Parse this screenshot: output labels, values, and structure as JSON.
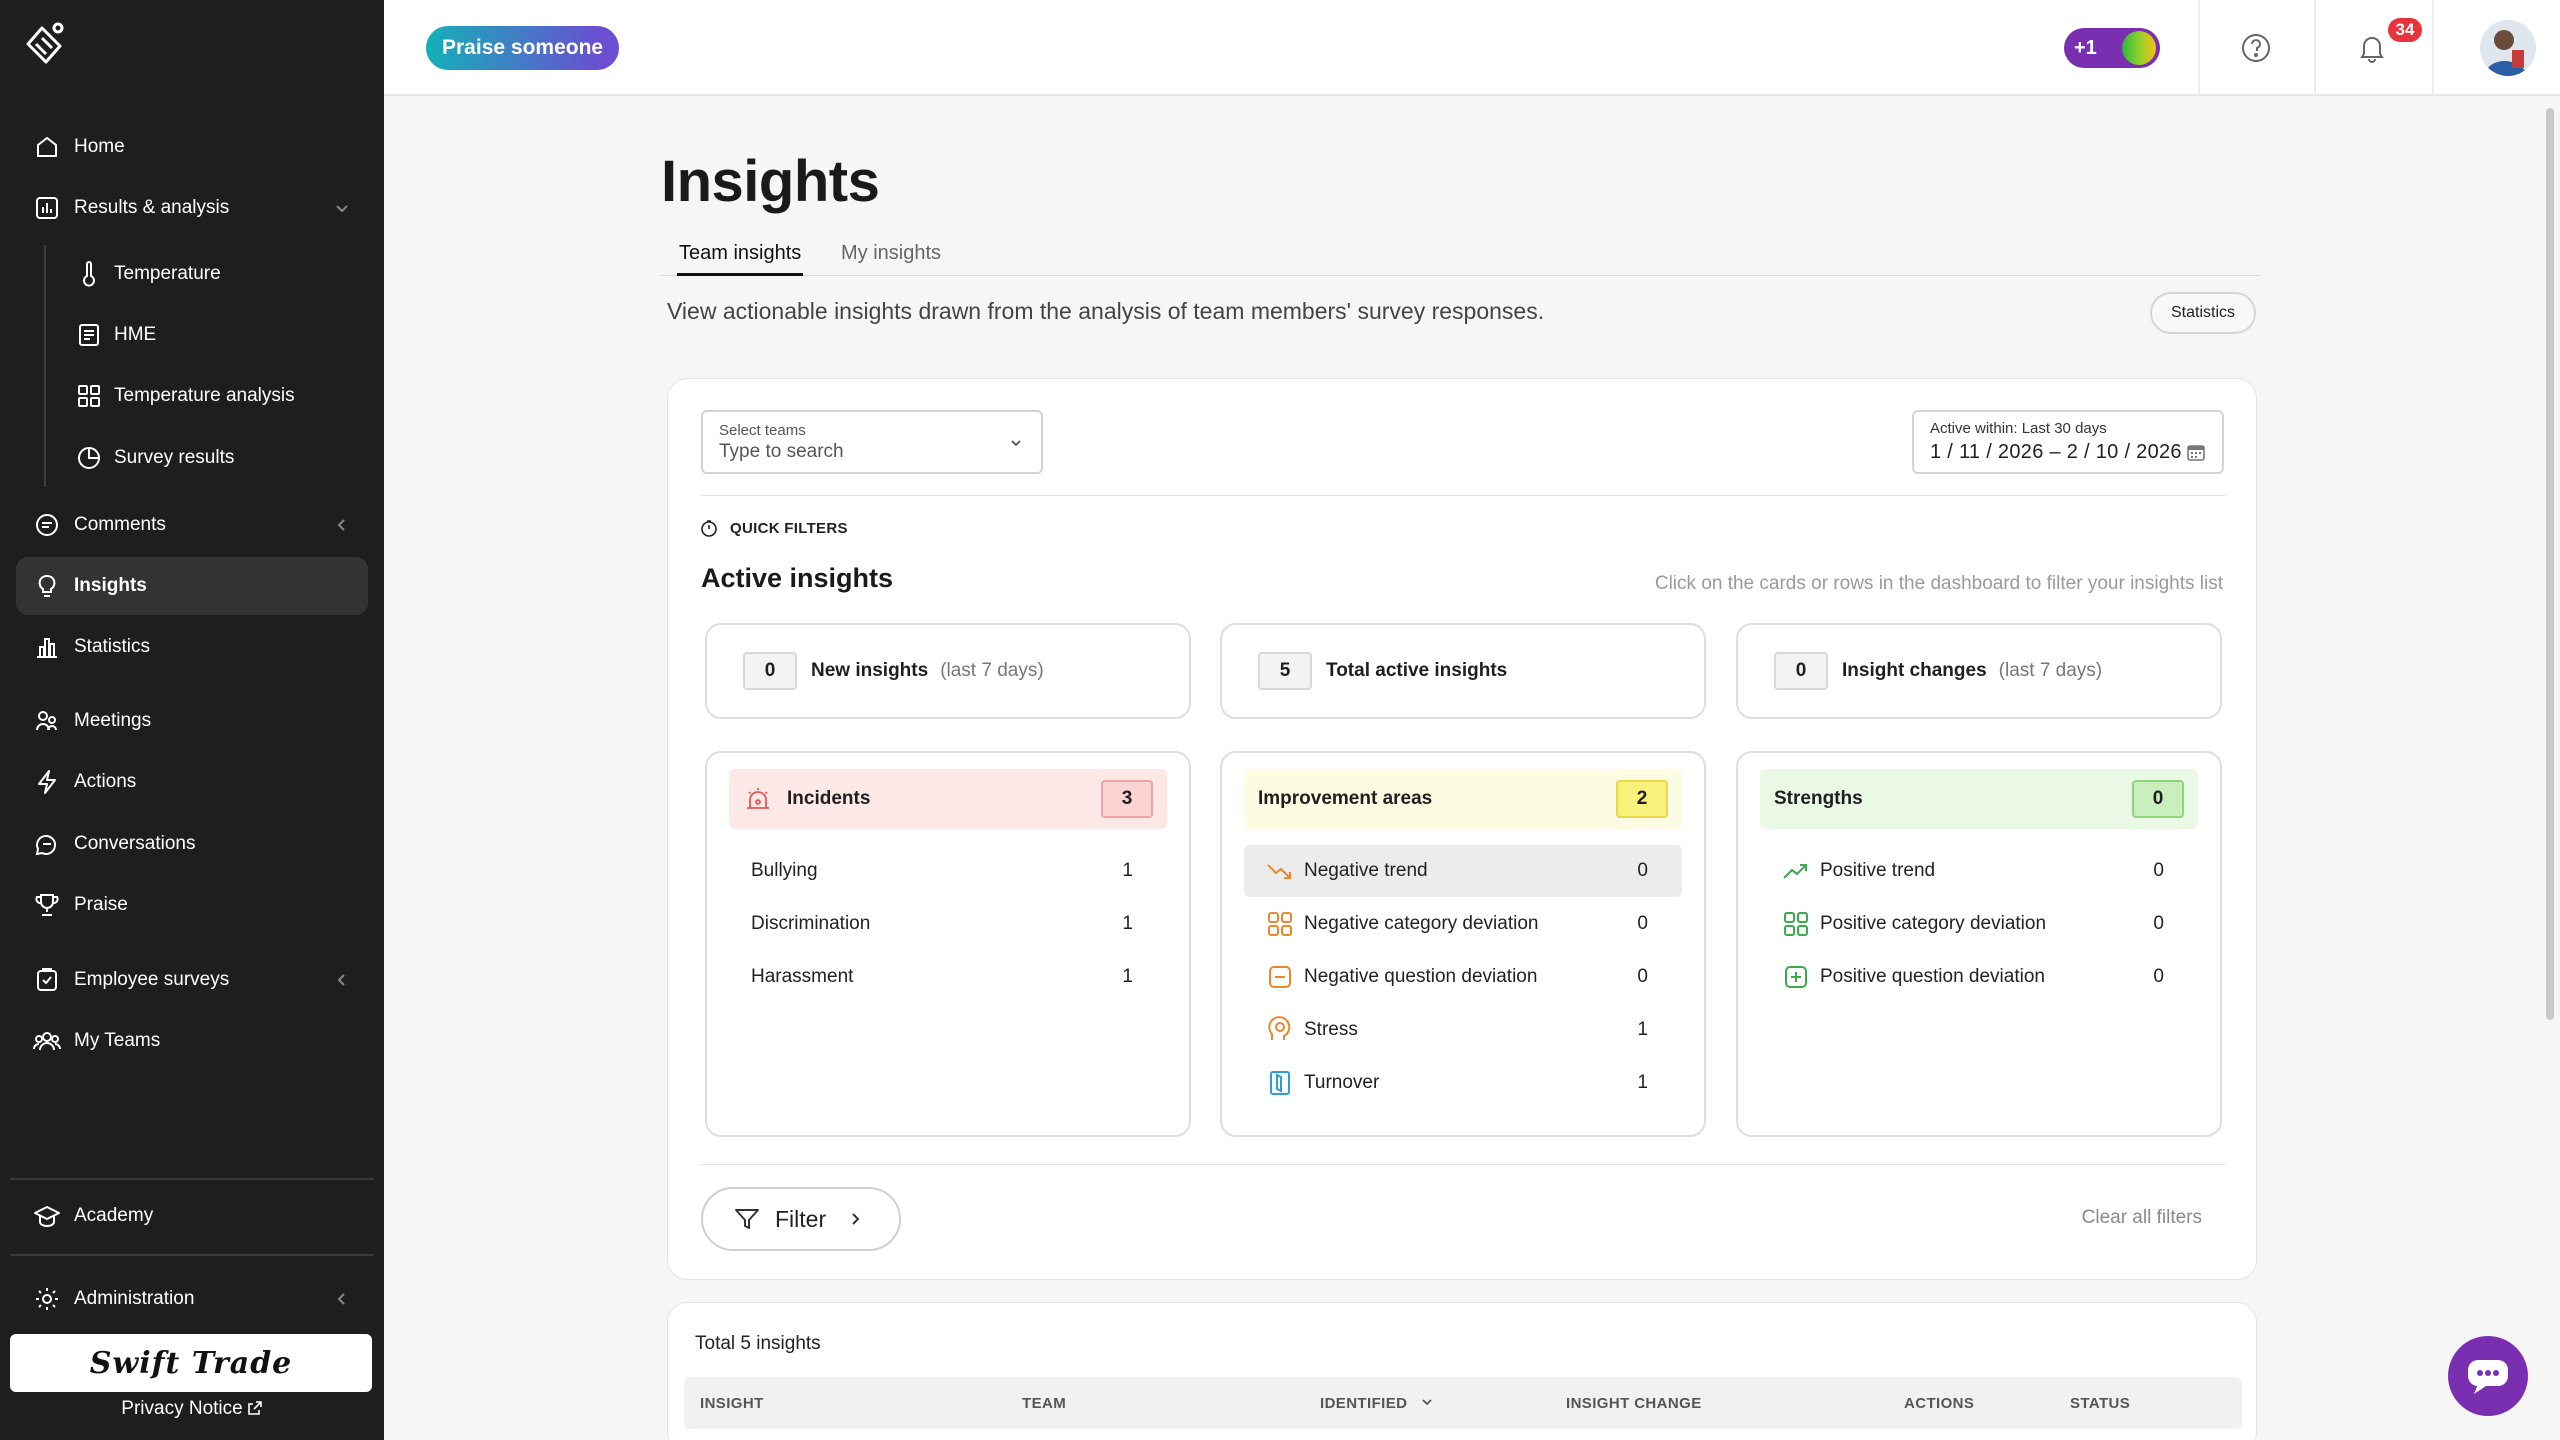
{
  "sidebar": {
    "items": [
      {
        "label": "Home",
        "icon": "home-icon"
      },
      {
        "label": "Results & analysis",
        "icon": "chart-icon"
      },
      {
        "label": "Temperature",
        "icon": "thermometer-icon"
      },
      {
        "label": "HME",
        "icon": "document-icon"
      },
      {
        "label": "Temperature analysis",
        "icon": "grid-icon"
      },
      {
        "label": "Survey results",
        "icon": "pie-icon"
      },
      {
        "label": "Comments",
        "icon": "comment-icon"
      },
      {
        "label": "Insights",
        "icon": "bulb-icon"
      },
      {
        "label": "Statistics",
        "icon": "bar-chart-icon"
      },
      {
        "label": "Meetings",
        "icon": "meetings-icon"
      },
      {
        "label": "Actions",
        "icon": "bolt-icon"
      },
      {
        "label": "Conversations",
        "icon": "conversations-icon"
      },
      {
        "label": "Praise",
        "icon": "trophy-icon"
      },
      {
        "label": "Employee surveys",
        "icon": "survey-icon"
      },
      {
        "label": "My Teams",
        "icon": "team-icon"
      },
      {
        "label": "Academy",
        "icon": "graduation-icon"
      },
      {
        "label": "Administration",
        "icon": "gear-icon"
      }
    ],
    "brand": "Swift Trade",
    "privacy": "Privacy Notice"
  },
  "topbar": {
    "praise_button": "Praise someone",
    "plus_label": "+1",
    "notification_count": "34"
  },
  "main": {
    "title": "Insights",
    "tabs": [
      {
        "label": "Team insights"
      },
      {
        "label": "My insights"
      }
    ],
    "description": "View actionable insights drawn from the analysis of team members' survey responses.",
    "statistics_button": "Statistics",
    "select_teams": {
      "label": "Select teams",
      "placeholder": "Type to search"
    },
    "date_range": {
      "label": "Active within: Last 30 days",
      "value": "1 / 11 / 2026  –  2 / 10 / 2026"
    },
    "quick_filters": "QUICK FILTERS",
    "active_insights_title": "Active insights",
    "hint": "Click on the cards or rows in the dashboard to filter your insights list",
    "kpis": [
      {
        "value": "0",
        "label": "New insights",
        "sub": "(last 7 days)"
      },
      {
        "value": "5",
        "label": "Total active insights",
        "sub": ""
      },
      {
        "value": "0",
        "label": "Insight changes",
        "sub": "(last 7 days)"
      }
    ],
    "categories": [
      {
        "title": "Incidents",
        "count": "3",
        "head_color": "#fde8e8",
        "count_color": "#fbd3d3",
        "count_border": "#f0a3a3",
        "rows": [
          {
            "label": "Bullying",
            "value": "1"
          },
          {
            "label": "Discrimination",
            "value": "1"
          },
          {
            "label": "Harassment",
            "value": "1"
          }
        ]
      },
      {
        "title": "Improvement areas",
        "count": "2",
        "head_color": "#fdfbe1",
        "count_color": "#f8f17a",
        "count_border": "#e8d84a",
        "rows": [
          {
            "label": "Negative trend",
            "value": "0",
            "icon": "trend-down-icon"
          },
          {
            "label": "Negative category deviation",
            "value": "0",
            "icon": "category-icon"
          },
          {
            "label": "Negative question deviation",
            "value": "0",
            "icon": "minus-square-icon"
          },
          {
            "label": "Stress",
            "value": "1",
            "icon": "stress-icon"
          },
          {
            "label": "Turnover",
            "value": "1",
            "icon": "turnover-icon"
          }
        ]
      },
      {
        "title": "Strengths",
        "count": "0",
        "head_color": "#eaf8e6",
        "count_color": "#c9efbd",
        "count_border": "#8fd47a",
        "rows": [
          {
            "label": "Positive trend",
            "value": "0",
            "icon": "trend-up-icon"
          },
          {
            "label": "Positive category deviation",
            "value": "0",
            "icon": "category-icon"
          },
          {
            "label": "Positive question deviation",
            "value": "0",
            "icon": "plus-square-icon"
          }
        ]
      }
    ],
    "filter_button": "Filter",
    "clear_filters": "Clear all filters",
    "table": {
      "total": "Total 5 insights",
      "columns": [
        "INSIGHT",
        "TEAM",
        "IDENTIFIED",
        "INSIGHT CHANGE",
        "ACTIONS",
        "STATUS"
      ]
    }
  }
}
